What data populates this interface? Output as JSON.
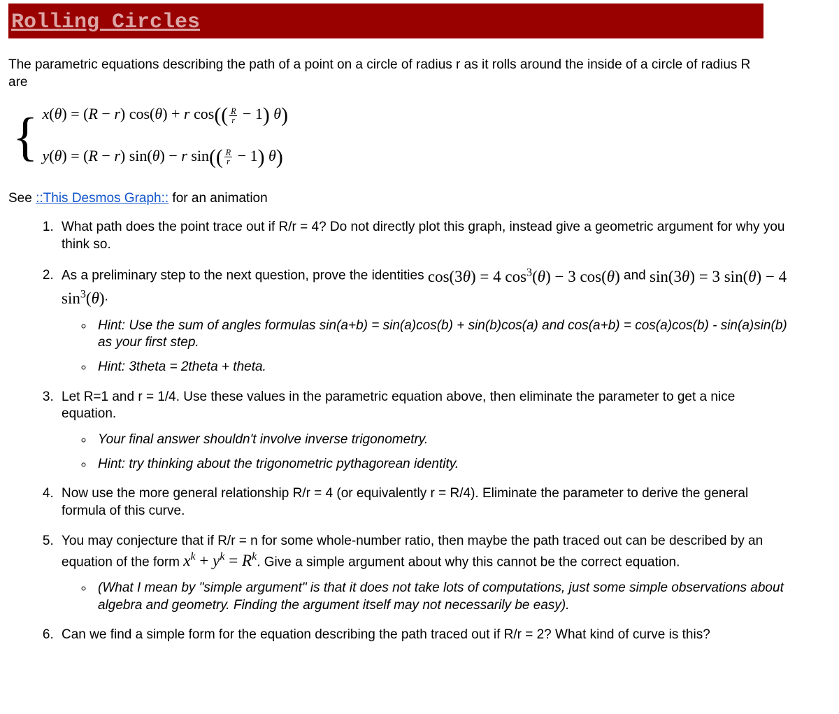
{
  "header": {
    "title": "Rolling Circles"
  },
  "colors": {
    "banner_bg": "#990000",
    "banner_text": "#dca5a5",
    "link": "#1155cc",
    "body": "#000000"
  },
  "intro": "The parametric equations describing the path of a point on a circle of radius r as it rolls around the inside of a circle of radius R are",
  "equations": {
    "x": "x(θ) = (R − r) cos(θ) + r cos( (R/r − 1) θ )",
    "y": "y(θ) = (R − r) sin(θ) − r sin( (R/r − 1) θ )"
  },
  "see": {
    "prefix": "See ",
    "link_text": "::This Desmos Graph::",
    "suffix": " for an animation"
  },
  "questions": {
    "q1": "What path does the point trace out if R/r = 4?  Do not directly plot this graph, instead give a geometric argument for why you think so.",
    "q2_a": "As a preliminary step to the next question, prove the identities ",
    "q2_id1": "cos(3θ) = 4 cos³(θ) − 3 cos(θ)",
    "q2_mid": " and ",
    "q2_id2": "sin(3θ) = 3 sin(θ) − 4 sin³(θ)",
    "q2_end": ".",
    "q2_hint1": "Hint: Use the sum of angles formulas sin(a+b) = sin(a)cos(b) + sin(b)cos(a) and cos(a+b) = cos(a)cos(b) - sin(a)sin(b) as your first step.",
    "q2_hint2": "Hint: 3theta = 2theta + theta.",
    "q3": "Let R=1 and r = 1/4.  Use these values in the parametric equation above, then eliminate the parameter to get a nice equation.",
    "q3_hint1": "Your final answer shouldn't involve inverse trigonometry.",
    "q3_hint2": "Hint: try thinking about the trigonometric pythagorean identity.",
    "q4": "Now use the more general relationship R/r = 4 (or equivalently r = R/4).  Eliminate the parameter to derive the general formula of this curve.",
    "q5_a": "You may conjecture that if R/r = n for some whole-number ratio, then maybe the path traced out can be described by an equation of the form ",
    "q5_eq": "xᵏ + yᵏ = Rᵏ",
    "q5_b": ". Give a simple argument about why this cannot be the correct equation.",
    "q5_hint": "(What I mean by \"simple argument\" is that it does not take lots of computations, just some simple observations about algebra and geometry.  Finding the argument itself may not necessarily be easy).",
    "q6": "Can we find a simple form for the equation describing the path traced out if R/r = 2?  What kind of curve is this?"
  }
}
